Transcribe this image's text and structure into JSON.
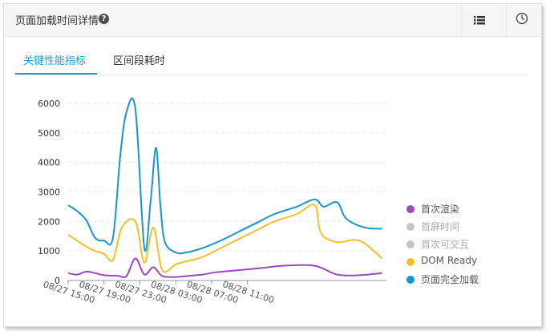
{
  "header": {
    "title": "页面加载时间详情",
    "help_icon": "?"
  },
  "tabs": [
    {
      "label": "关键性能指标"
    },
    {
      "label": "区间段耗时"
    }
  ],
  "icons": {
    "list": "list-icon",
    "clock": "clock-icon"
  },
  "colors": {
    "accent": "#1a9dd4"
  },
  "legend": [
    {
      "label": "首次渲染",
      "color": "#9b48c1",
      "active": true
    },
    {
      "label": "首屏时间",
      "color": "#c4c4c4",
      "active": false
    },
    {
      "label": "首次可交互",
      "color": "#c4c4c4",
      "active": false
    },
    {
      "label": "DOM Ready",
      "color": "#f8bf24",
      "active": true
    },
    {
      "label": "页面完全加载",
      "color": "#1a94d0",
      "active": true
    }
  ],
  "chart_data": {
    "type": "line",
    "ylim": [
      0,
      6000
    ],
    "yticks": [
      0,
      1000,
      2000,
      3000,
      4000,
      5000,
      6000
    ],
    "xlim": [
      0,
      35.5
    ],
    "xticks": [
      {
        "x": 0,
        "label": "08/27 15:00"
      },
      {
        "x": 4,
        "label": "08/27 19:00"
      },
      {
        "x": 8,
        "label": "08/27 23:00"
      },
      {
        "x": 12,
        "label": "08/28 03:00"
      },
      {
        "x": 16,
        "label": "08/28 07:00"
      },
      {
        "x": 20,
        "label": "08/28 11:00"
      }
    ],
    "grid": true,
    "series": [
      {
        "name": "首次渲染",
        "color": "#9b48c1",
        "x": [
          0,
          1.0,
          2.0,
          3.0,
          4.0,
          5.5,
          6.5,
          7.5,
          8.5,
          9.5,
          10.5,
          12.0,
          13.2,
          15.0,
          16.5,
          19.0,
          21.5,
          24.0,
          27.5,
          30.0,
          32.5,
          35.0
        ],
        "y": [
          250,
          200,
          300,
          250,
          180,
          160,
          150,
          750,
          200,
          450,
          150,
          120,
          150,
          200,
          280,
          350,
          420,
          500,
          500,
          200,
          180,
          250
        ]
      },
      {
        "name": "DOM Ready",
        "color": "#f8bf24",
        "x": [
          0,
          1.0,
          2.0,
          3.0,
          4.0,
          5.0,
          6.0,
          7.5,
          8.5,
          9.5,
          10.5,
          12.0,
          13.2,
          15.0,
          17.0,
          19.0,
          21.0,
          23.0,
          25.5,
          27.5,
          28.2,
          30.0,
          32.5,
          35.0
        ],
        "y": [
          1550,
          1350,
          1150,
          1000,
          900,
          700,
          1800,
          2000,
          600,
          1800,
          350,
          550,
          650,
          800,
          1100,
          1400,
          1700,
          2000,
          2250,
          2550,
          1600,
          1300,
          1350,
          750
        ]
      },
      {
        "name": "页面完全加载",
        "color": "#1a94d0",
        "x": [
          0,
          1.0,
          2.0,
          3.0,
          4.0,
          5.0,
          5.8,
          6.5,
          7.5,
          8.5,
          9.2,
          9.8,
          10.3,
          10.8,
          12.0,
          13.2,
          15.0,
          17.0,
          19.0,
          21.0,
          23.0,
          25.5,
          27.5,
          28.5,
          30.0,
          31.0,
          33.0,
          35.0
        ],
        "y": [
          2550,
          2350,
          2050,
          1450,
          1350,
          1450,
          4200,
          5700,
          5800,
          1100,
          2700,
          4500,
          2500,
          1300,
          950,
          950,
          1100,
          1350,
          1650,
          1950,
          2250,
          2500,
          2750,
          2500,
          2650,
          2100,
          1800,
          1750
        ]
      }
    ]
  }
}
